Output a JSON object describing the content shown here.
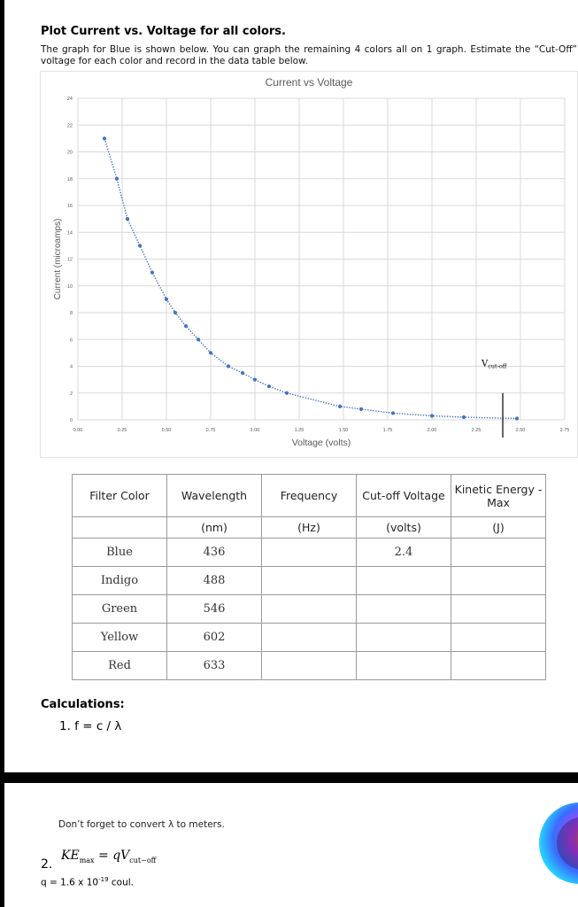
{
  "heading": "Plot Current vs. Voltage for all colors.",
  "instructions": "The graph for Blue is shown below.  You can graph the remaining 4 colors all on 1 graph. Estimate the “Cut-Off” voltage for each color and record in the data table below.",
  "chart_data": {
    "type": "scatter",
    "title": "Current vs Voltage",
    "xlabel": "Voltage (volts)",
    "ylabel": "Current (microamps)",
    "xlim": [
      0,
      2.75
    ],
    "ylim": [
      0,
      24
    ],
    "x_ticks": [
      "0.00",
      "0.25",
      "0.50",
      "0.75",
      "1.00",
      "1.25",
      "1.50",
      "1.75",
      "2.00",
      "2.25",
      "2.50",
      "2.75"
    ],
    "y_ticks": [
      "0",
      "2",
      "4",
      "6",
      "8",
      "10",
      "12",
      "14",
      "16",
      "18",
      "20",
      "22",
      "24"
    ],
    "grid": true,
    "trendline": "dotted",
    "series": [
      {
        "color": "#4472C4",
        "x": [
          0.15,
          0.22,
          0.28,
          0.35,
          0.42,
          0.5,
          0.55,
          0.61,
          0.68,
          0.75,
          0.85,
          0.93,
          1.0,
          1.08,
          1.18,
          1.48,
          1.6,
          1.78,
          2.0,
          2.18,
          2.48
        ],
        "y": [
          21,
          18,
          15,
          13,
          11,
          9,
          8,
          7,
          6,
          5,
          4,
          3.5,
          3,
          2.5,
          2,
          1,
          0.8,
          0.5,
          0.3,
          0.2,
          0.1
        ]
      }
    ],
    "annotation": {
      "text": "V",
      "sub": "cut-off",
      "x": 2.4
    }
  },
  "table": {
    "headers": [
      {
        "label": "Filter Color",
        "unit": ""
      },
      {
        "label": "Wavelength",
        "unit": "(nm)"
      },
      {
        "label": "Frequency",
        "unit": "(Hz)"
      },
      {
        "label": "Cut-off Voltage",
        "unit": "(volts)"
      },
      {
        "label": "Kinetic Energy - Max",
        "unit": "(J)"
      }
    ],
    "rows": [
      [
        "Blue",
        "436",
        "",
        "2.4",
        ""
      ],
      [
        "Indigo",
        "488",
        "",
        "",
        ""
      ],
      [
        "Green",
        "546",
        "",
        "",
        ""
      ],
      [
        "Yellow",
        "602",
        "",
        "",
        ""
      ],
      [
        "Red",
        "633",
        "",
        "",
        ""
      ]
    ]
  },
  "calculations": {
    "title": "Calculations:",
    "formula1": "1. f = c / λ",
    "reminder": "Don’t forget to convert λ to meters.",
    "num2": "2.",
    "ke_lhs": "KE",
    "ke_lhs_sub": "max",
    "ke_rhs": " = qV",
    "ke_rhs_sub": "cut−off",
    "q_prefix": "q = 1.6 x 10",
    "q_exp": "-19",
    "q_suffix": " coul."
  }
}
